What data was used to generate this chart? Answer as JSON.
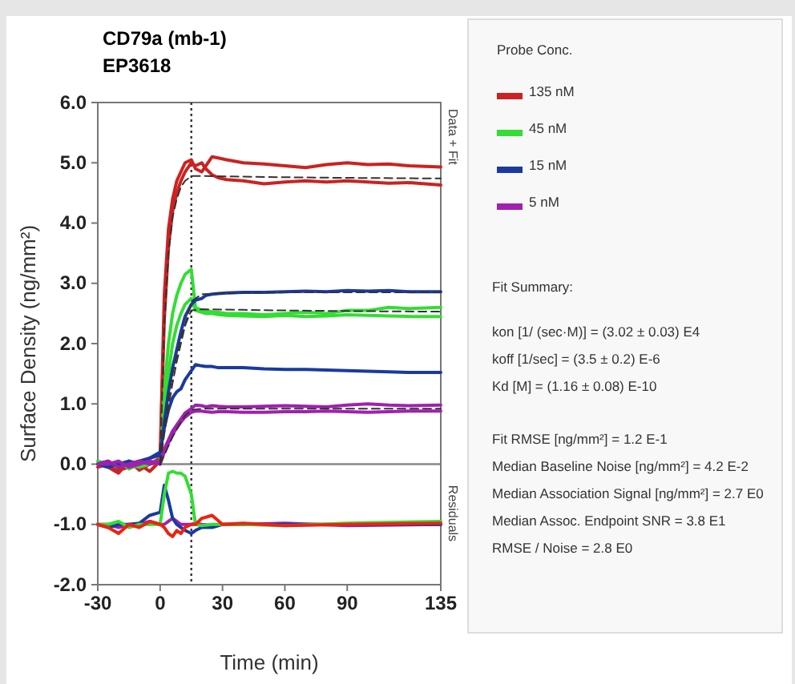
{
  "chart_data": {
    "type": "line",
    "title": "CD79a (mb-1)",
    "subtitle": "EP3618",
    "xlabel": "Time (min)",
    "ylabel": "Surface Density (ng/mm²)",
    "legend_title": "Probe Conc.",
    "legend": "right",
    "grid": false,
    "marker": "none",
    "line_style": "solid",
    "xlim": [
      -30,
      135
    ],
    "xticks": [
      -30,
      0,
      30,
      60,
      90,
      135
    ],
    "ylim": [
      -2,
      6
    ],
    "yticks": [
      {
        "value": -2,
        "label": "-2.0"
      },
      {
        "value": -1,
        "label": "-1.0"
      },
      {
        "value": 0,
        "label": "0.0"
      },
      {
        "value": 1,
        "label": "1.0"
      },
      {
        "value": 2,
        "label": "2.0"
      },
      {
        "value": 3,
        "label": "3.0"
      },
      {
        "value": 4,
        "label": "4.0"
      },
      {
        "value": 5,
        "label": "5.0"
      },
      {
        "value": 6,
        "label": "6.0"
      }
    ],
    "x": [
      -30,
      -25,
      -20,
      -15,
      -10,
      -5,
      0,
      2,
      4,
      6,
      8,
      10,
      12,
      15,
      17,
      20,
      22,
      25,
      28,
      32,
      40,
      50,
      60,
      70,
      80,
      90,
      100,
      110,
      120,
      135
    ],
    "series": [
      {
        "name": "135 nM",
        "color": "#cc2222",
        "values": [
          0,
          -0.05,
          -0.15,
          0.05,
          -0.1,
          0,
          0.1,
          2.8,
          3.9,
          4.4,
          4.7,
          4.85,
          5.0,
          5.05,
          4.9,
          4.85,
          4.95,
          5.1,
          5.08,
          5.05,
          5.0,
          4.98,
          4.95,
          4.92,
          4.97,
          5.0,
          4.97,
          4.98,
          4.95,
          4.93
        ]
      },
      {
        "color": "#cc2222",
        "values": [
          -0.05,
          0,
          -0.1,
          -0.05,
          0,
          -0.12,
          0.05,
          2.4,
          3.6,
          4.2,
          4.5,
          4.7,
          4.85,
          5.0,
          4.95,
          5.0,
          4.9,
          4.8,
          4.75,
          4.72,
          4.7,
          4.65,
          4.68,
          4.7,
          4.68,
          4.7,
          4.68,
          4.66,
          4.67,
          4.63
        ]
      },
      {
        "name": "45 nM",
        "color": "#33dd33",
        "values": [
          0,
          -0.05,
          0.05,
          -0.08,
          0,
          0.05,
          0,
          1.2,
          2.0,
          2.5,
          2.8,
          3.0,
          3.15,
          3.23,
          2.6,
          2.55,
          2.55,
          2.53,
          2.52,
          2.5,
          2.5,
          2.48,
          2.5,
          2.52,
          2.5,
          2.55,
          2.55,
          2.6,
          2.58,
          2.6
        ]
      },
      {
        "color": "#33dd33",
        "values": [
          0.05,
          0,
          -0.05,
          0,
          -0.05,
          0,
          0.05,
          0.8,
          1.5,
          2.0,
          2.3,
          2.5,
          2.65,
          2.75,
          2.55,
          2.52,
          2.5,
          2.5,
          2.48,
          2.47,
          2.46,
          2.45,
          2.47,
          2.45,
          2.46,
          2.48,
          2.47,
          2.46,
          2.45,
          2.45
        ]
      },
      {
        "name": "15 nM",
        "color": "#1a3aa0",
        "values": [
          0,
          0.05,
          -0.05,
          0,
          0.05,
          0.1,
          0.15,
          0.7,
          1.2,
          1.6,
          1.9,
          2.2,
          2.45,
          2.65,
          2.72,
          2.75,
          2.8,
          2.82,
          2.83,
          2.84,
          2.85,
          2.85,
          2.86,
          2.87,
          2.86,
          2.88,
          2.87,
          2.88,
          2.86,
          2.86
        ]
      },
      {
        "color": "#1a3aa0",
        "values": [
          0,
          -0.05,
          0,
          0.05,
          0,
          0.1,
          0.2,
          0.6,
          0.9,
          1.1,
          1.2,
          1.25,
          1.4,
          1.55,
          1.65,
          1.63,
          1.62,
          1.62,
          1.6,
          1.6,
          1.6,
          1.58,
          1.57,
          1.57,
          1.56,
          1.55,
          1.54,
          1.53,
          1.52,
          1.52
        ]
      },
      {
        "name": "5 nM",
        "color": "#a020b0",
        "values": [
          0,
          0.05,
          -0.05,
          0,
          0.05,
          0,
          0.05,
          0.25,
          0.4,
          0.55,
          0.65,
          0.75,
          0.85,
          0.92,
          0.98,
          0.97,
          0.95,
          0.97,
          0.96,
          0.95,
          0.95,
          0.96,
          0.97,
          0.96,
          0.95,
          0.98,
          1.0,
          0.98,
          0.97,
          0.98
        ]
      },
      {
        "color": "#a020b0",
        "values": [
          0,
          0,
          0.05,
          -0.05,
          0,
          0.05,
          0,
          0.2,
          0.35,
          0.5,
          0.6,
          0.7,
          0.78,
          0.86,
          0.88,
          0.88,
          0.87,
          0.86,
          0.87,
          0.87,
          0.86,
          0.86,
          0.87,
          0.87,
          0.88,
          0.87,
          0.86,
          0.87,
          0.88,
          0.88
        ]
      },
      {
        "color": "#333333",
        "line_style": "dashed",
        "x": [
          0,
          2,
          4,
          6,
          8,
          10,
          12,
          15,
          20,
          40,
          60,
          90,
          135
        ],
        "values": [
          0,
          2.3,
          3.5,
          4.1,
          4.4,
          4.6,
          4.7,
          4.78,
          4.78,
          4.77,
          4.76,
          4.75,
          4.74
        ]
      },
      {
        "color": "#333333",
        "line_style": "dashed",
        "x": [
          0,
          2,
          4,
          6,
          8,
          10,
          12,
          15,
          20,
          40,
          60,
          90,
          135
        ],
        "values": [
          0,
          0.6,
          1.1,
          1.5,
          1.8,
          2.1,
          2.3,
          2.55,
          2.57,
          2.56,
          2.55,
          2.54,
          2.53
        ]
      },
      {
        "color": "#333333",
        "line_style": "dashed",
        "x": [
          0,
          2,
          4,
          6,
          8,
          10,
          12,
          15,
          20,
          40,
          60,
          90,
          135
        ],
        "values": [
          0,
          0.5,
          0.95,
          1.35,
          1.7,
          2.0,
          2.3,
          2.7,
          2.82,
          2.84,
          2.85,
          2.85,
          2.85
        ]
      },
      {
        "color": "#333333",
        "line_style": "dashed",
        "x": [
          0,
          2,
          4,
          6,
          8,
          10,
          12,
          15,
          20,
          40,
          60,
          90,
          135
        ],
        "values": [
          0,
          0.15,
          0.3,
          0.45,
          0.58,
          0.7,
          0.8,
          0.9,
          0.92,
          0.92,
          0.92,
          0.92,
          0.92
        ]
      },
      {
        "color": "#a020b0",
        "x": [
          -30,
          -25,
          -20,
          -15,
          -10,
          -5,
          0,
          2,
          4,
          6,
          8,
          10,
          12,
          15,
          17,
          20,
          25,
          30,
          40,
          60,
          90,
          135
        ],
        "values": [
          -1.0,
          -1.0,
          -1.05,
          -1.0,
          -1.0,
          -0.95,
          -1.0,
          -1.0,
          -0.95,
          -0.9,
          -0.95,
          -1.0,
          -1.0,
          -1.0,
          -0.98,
          -1.0,
          -1.02,
          -1.0,
          -1.0,
          -0.98,
          -1.02,
          -1.0
        ]
      },
      {
        "color": "#1a3aa0",
        "x": [
          -30,
          -25,
          -20,
          -15,
          -10,
          -5,
          0,
          2,
          4,
          6,
          8,
          10,
          12,
          15,
          17,
          20,
          25,
          30,
          40,
          60,
          90,
          135
        ],
        "values": [
          -1.0,
          -1.05,
          -1.0,
          -1.0,
          -0.98,
          -0.85,
          -0.8,
          -0.35,
          -0.6,
          -0.9,
          -1.0,
          -1.05,
          -1.1,
          -1.15,
          -1.1,
          -1.05,
          -1.05,
          -1.0,
          -1.0,
          -1.0,
          -1.0,
          -1.0
        ]
      },
      {
        "color": "#33dd33",
        "x": [
          -30,
          -25,
          -20,
          -15,
          -10,
          -5,
          0,
          2,
          4,
          6,
          8,
          10,
          12,
          15,
          17,
          20,
          25,
          30,
          40,
          60,
          90,
          135
        ],
        "values": [
          -1.0,
          -1.0,
          -0.95,
          -1.05,
          -1.0,
          -1.0,
          -1.0,
          -0.5,
          -0.15,
          -0.12,
          -0.15,
          -0.15,
          -0.2,
          -0.5,
          -1.0,
          -1.02,
          -1.0,
          -1.0,
          -1.0,
          -1.02,
          -0.98,
          -0.95
        ]
      },
      {
        "color": "#ee2211",
        "x": [
          -30,
          -25,
          -20,
          -15,
          -10,
          -5,
          0,
          2,
          4,
          6,
          8,
          10,
          12,
          15,
          17,
          20,
          25,
          30,
          40,
          60,
          90,
          135
        ],
        "values": [
          -1.0,
          -1.05,
          -1.15,
          -1.0,
          -1.05,
          -0.95,
          -1.0,
          -1.05,
          -1.15,
          -1.2,
          -1.1,
          -1.15,
          -1.05,
          -1.0,
          -1.0,
          -0.9,
          -0.85,
          -1.0,
          -0.98,
          -1.02,
          -1.0,
          -0.98
        ]
      }
    ],
    "ref_lines": [
      {
        "axis": "y",
        "value": 0,
        "color": "#888888",
        "line_style": "solid"
      },
      {
        "axis": "x",
        "value": 15,
        "color": "#333333",
        "line_style": "dotted"
      }
    ],
    "annotations": [
      "Data + Fit",
      "Residuals",
      "Fit Summary:",
      "kon  [1/ (sec·M)]  =  (3.02 ± 0.03) E4",
      "koff  [1/sec]  =  (3.5 ± 0.2) E-6",
      "Kd  [M]  =  (1.16 ± 0.08) E-10",
      "Fit RMSE [ng/mm²]  =  1.2 E-1",
      "Median Baseline Noise [ng/mm²]  =  4.2 E-2",
      "Median Association Signal [ng/mm²]  =  2.7 E0",
      "Median Assoc. Endpoint SNR  =  3.8 E1",
      "RMSE / Noise  =  2.8 E0"
    ]
  }
}
